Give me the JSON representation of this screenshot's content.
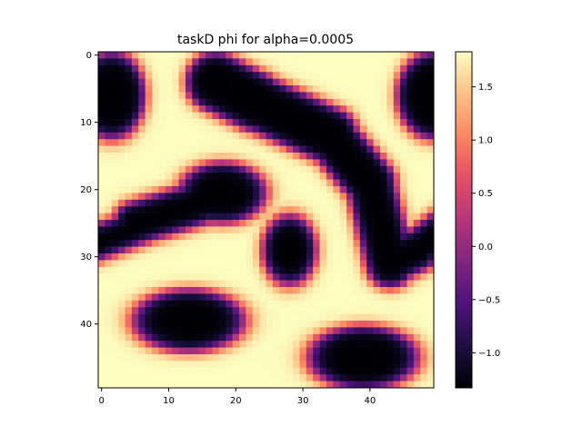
{
  "chart_data": {
    "type": "heatmap",
    "title": "taskD phi for alpha=0.0005",
    "colormap": "magma",
    "grid": false,
    "grid_shape": [
      50,
      50
    ],
    "x_ticks": [
      0,
      10,
      20,
      30,
      40
    ],
    "y_ticks": [
      0,
      10,
      20,
      30,
      40
    ],
    "xlim": [
      -0.5,
      49.5
    ],
    "ylim": [
      -0.5,
      49.5
    ],
    "y_axis_inverted": true,
    "value_range": [
      -1.33,
      1.83
    ],
    "colorbar_ticks": [
      1.5,
      1.0,
      0.5,
      0.0,
      -0.5,
      -1.0
    ],
    "colorbar_tick_labels": [
      "1.5",
      "1.0",
      "0.5",
      "0.0",
      "−0.5",
      "−1.0"
    ],
    "field_description": "two-phase field: background value 1.83, dark domains value -1.33",
    "domains": [
      {
        "shape": "ellipse",
        "cx": 1.5,
        "cy": 6,
        "rx": 5,
        "ry": 6.5
      },
      {
        "shape": "ellipse",
        "cx": 49.5,
        "cy": 6,
        "rx": 5.5,
        "ry": 6.5
      },
      {
        "shape": "ellipse",
        "cx": 18,
        "cy": 20.5,
        "rx": 6.5,
        "ry": 4.5
      },
      {
        "shape": "capsule",
        "x1": 5,
        "y1": 25,
        "x2": 18,
        "y2": 21,
        "r": 3.2
      },
      {
        "shape": "capsule",
        "x1": -1,
        "y1": 28,
        "x2": 7,
        "y2": 25,
        "r": 2.6
      },
      {
        "shape": "capsule",
        "x1": 17,
        "y1": 4,
        "x2": 23,
        "y2": 7,
        "r": 4.4
      },
      {
        "shape": "capsule",
        "x1": 23,
        "y1": 7,
        "x2": 34,
        "y2": 12,
        "r": 4.2
      },
      {
        "shape": "capsule",
        "x1": 34,
        "y1": 12,
        "x2": 40,
        "y2": 19,
        "r": 3.8
      },
      {
        "shape": "capsule",
        "x1": 40,
        "y1": 19,
        "x2": 43,
        "y2": 31,
        "r": 3.6
      },
      {
        "shape": "capsule",
        "x1": 43,
        "y1": 31,
        "x2": 47,
        "y2": 29,
        "r": 3.2
      },
      {
        "shape": "capsule",
        "x1": 47,
        "y1": 29,
        "x2": 51,
        "y2": 26,
        "r": 3.0
      },
      {
        "shape": "ellipse",
        "cx": 28,
        "cy": 29,
        "rx": 4,
        "ry": 5.2
      },
      {
        "shape": "ellipse",
        "cx": 13,
        "cy": 39.5,
        "rx": 8.3,
        "ry": 4.6
      },
      {
        "shape": "ellipse",
        "cx": 39,
        "cy": 45,
        "rx": 8.2,
        "ry": 4.7
      }
    ]
  }
}
